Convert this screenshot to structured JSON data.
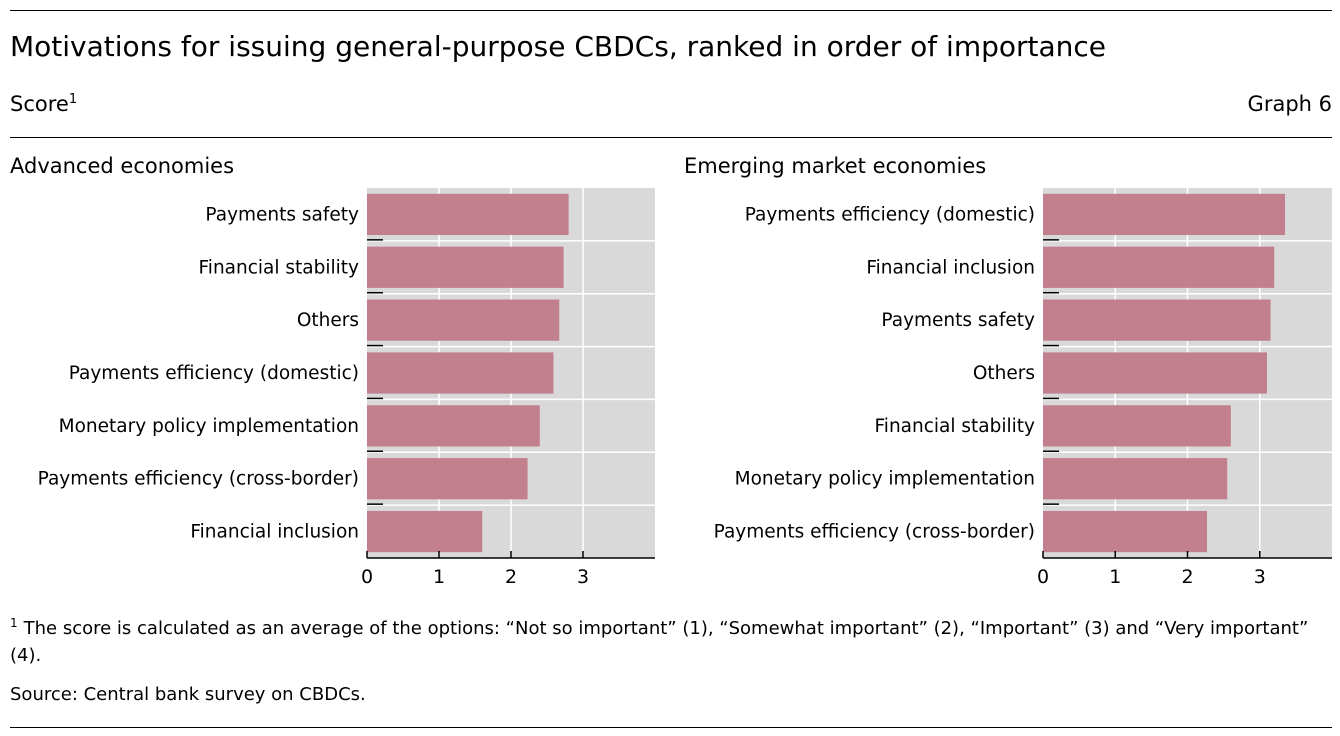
{
  "header": {
    "title": "Motivations for issuing general-purpose CBDCs, ranked in order of importance",
    "subtitle": "Score",
    "subtitle_note_marker": "1",
    "graph_number": "Graph 6"
  },
  "colors": {
    "bar": "#c27f8d",
    "plot_background": "#d9d9d9",
    "gridline": "#ffffff",
    "axis": "#000000"
  },
  "chart_data": [
    {
      "type": "bar",
      "orientation": "horizontal",
      "title": "Advanced economies",
      "categories": [
        "Payments safety",
        "Financial stability",
        "Others",
        "Payments efficiency (domestic)",
        "Monetary policy implementation",
        "Payments efficiency (cross-border)",
        "Financial inclusion"
      ],
      "values": [
        2.8,
        2.73,
        2.67,
        2.59,
        2.4,
        2.23,
        1.6
      ],
      "xlim": [
        0,
        4
      ],
      "xticks": [
        "0",
        "1",
        "2",
        "3"
      ],
      "grid": true
    },
    {
      "type": "bar",
      "orientation": "horizontal",
      "title": "Emerging market economies",
      "categories": [
        "Payments efficiency (domestic)",
        "Financial inclusion",
        "Payments safety",
        "Others",
        "Financial stability",
        "Monetary policy implementation",
        "Payments efficiency (cross-border)"
      ],
      "values": [
        3.35,
        3.2,
        3.15,
        3.1,
        2.6,
        2.55,
        2.27
      ],
      "xlim": [
        0,
        4
      ],
      "xticks": [
        "0",
        "1",
        "2",
        "3"
      ],
      "grid": true
    }
  ],
  "footnote": {
    "marker": "1",
    "text": "The score is calculated as an average of the options: “Not so important” (1), “Somewhat important” (2), “Important” (3) and “Very important” (4)."
  },
  "source": "Source: Central bank survey on CBDCs."
}
